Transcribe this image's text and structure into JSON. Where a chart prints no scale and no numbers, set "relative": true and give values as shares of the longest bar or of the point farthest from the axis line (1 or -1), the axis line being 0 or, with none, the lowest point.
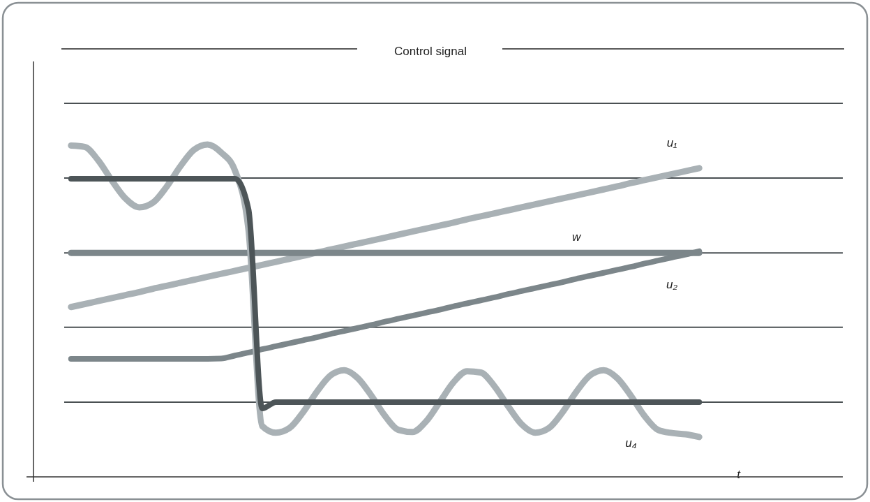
{
  "chart_data": {
    "type": "line",
    "title": "Control signal",
    "xlabel": "t",
    "relative": true,
    "categories": [
      null,
      null,
      null,
      null,
      null,
      null,
      null,
      null,
      null,
      null,
      null,
      null,
      null,
      null,
      null,
      null,
      null,
      null,
      null,
      null,
      null,
      null,
      null,
      null,
      null,
      null,
      null,
      null,
      null,
      null,
      null,
      null,
      null,
      null,
      null,
      null,
      null,
      null,
      null,
      null,
      null,
      null,
      null,
      null,
      null,
      null,
      null
    ],
    "series": [
      {
        "name": "u₁",
        "color": "#a9b1b5",
        "values": [
          0.511,
          0.52,
          0.529,
          0.538,
          0.547,
          0.556,
          0.566,
          0.575,
          0.584,
          0.593,
          0.602,
          0.611,
          0.62,
          0.629,
          0.638,
          0.647,
          0.656,
          0.665,
          0.675,
          0.684,
          0.693,
          0.702,
          0.711,
          0.72,
          0.729,
          0.738,
          0.747,
          0.756,
          0.765,
          0.775,
          0.784,
          0.793,
          0.802,
          0.811,
          0.82,
          0.829,
          0.838,
          0.847,
          0.856,
          0.865,
          0.874,
          0.884,
          0.893,
          0.902,
          0.911,
          0.92,
          0.929
        ]
      },
      {
        "name": "w",
        "color": "#7c868a",
        "values": [
          0.674,
          0.674,
          0.674,
          0.674,
          0.674,
          0.674,
          0.674,
          0.674,
          0.674,
          0.674,
          0.674,
          0.674,
          0.674,
          0.674,
          0.674,
          0.674,
          0.674,
          0.674,
          0.674,
          0.674,
          0.674,
          0.674,
          0.674,
          0.674,
          0.674,
          0.674,
          0.674,
          0.674,
          0.674,
          0.674,
          0.674,
          0.674,
          0.674,
          0.674,
          0.674,
          0.674,
          0.674,
          0.674,
          0.674,
          0.674,
          0.674,
          0.674,
          0.674,
          0.674,
          0.674,
          0.674,
          0.674
        ]
      },
      {
        "name": "u₂",
        "color": "#7c868a",
        "values": [
          0.355,
          0.355,
          0.355,
          0.355,
          0.355,
          0.355,
          0.355,
          0.355,
          0.355,
          0.355,
          0.355,
          0.356,
          0.365,
          0.374,
          0.384,
          0.393,
          0.402,
          0.411,
          0.42,
          0.43,
          0.439,
          0.448,
          0.457,
          0.467,
          0.476,
          0.485,
          0.494,
          0.503,
          0.513,
          0.522,
          0.531,
          0.54,
          0.55,
          0.559,
          0.568,
          0.577,
          0.586,
          0.596,
          0.605,
          0.614,
          0.623,
          0.632,
          0.642,
          0.651,
          0.66,
          0.669,
          0.679
        ]
      },
      {
        "name": "u₄",
        "color": "#a9b1b5",
        "values": [
          0.997,
          0.993,
          0.952,
          0.891,
          0.837,
          0.811,
          0.825,
          0.873,
          0.934,
          0.984,
          1.0,
          0.976,
          0.922,
          0.742,
          0.153,
          0.133,
          0.147,
          0.195,
          0.256,
          0.305,
          0.321,
          0.297,
          0.244,
          0.183,
          0.141,
          0.135,
          0.167,
          0.225,
          0.284,
          0.318,
          0.314,
          0.273,
          0.213,
          0.158,
          0.133,
          0.147,
          0.195,
          0.256,
          0.305,
          0.321,
          0.297,
          0.244,
          0.183,
          0.141,
          0.132,
          0.128,
          0.12
        ]
      },
      {
        "color": "#4d5558",
        "values": [
          0.897,
          0.897,
          0.897,
          0.897,
          0.897,
          0.897,
          0.897,
          0.897,
          0.897,
          0.897,
          0.897,
          0.897,
          0.897,
          0.805,
          0.206,
          0.225,
          0.225,
          0.225,
          0.225,
          0.225,
          0.225,
          0.225,
          0.225,
          0.225,
          0.225,
          0.225,
          0.225,
          0.225,
          0.225,
          0.225,
          0.225,
          0.225,
          0.225,
          0.225,
          0.225,
          0.225,
          0.225,
          0.225,
          0.225,
          0.225,
          0.225,
          0.225,
          0.225,
          0.225,
          0.225,
          0.225,
          0.225
        ]
      }
    ],
    "ref_lines": [
      {
        "axis": "y",
        "value": 1.124,
        "color": "#4a5053"
      },
      {
        "axis": "y",
        "value": 0.899,
        "color": "#4a5053"
      },
      {
        "axis": "y",
        "value": 0.674,
        "color": "#4a5053"
      },
      {
        "axis": "y",
        "value": 0.45,
        "color": "#4a5053"
      },
      {
        "axis": "y",
        "value": 0.225,
        "color": "#4a5053"
      }
    ]
  }
}
